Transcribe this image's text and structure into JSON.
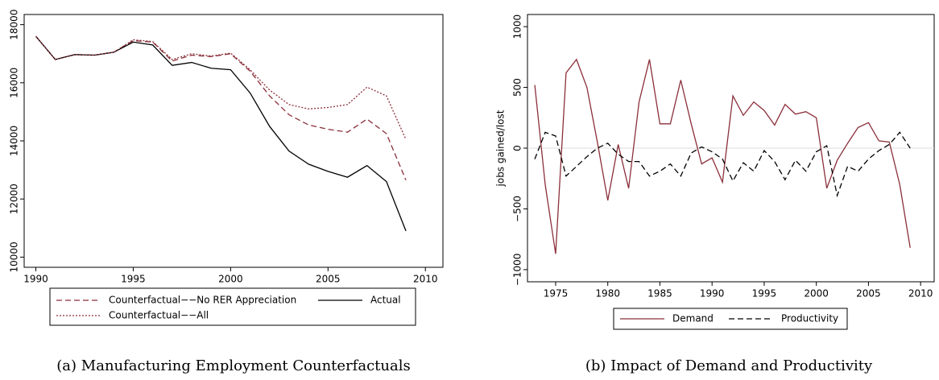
{
  "chart_data": [
    {
      "type": "line",
      "caption": "(a) Manufacturing Employment Counterfactuals",
      "x": [
        1990,
        1991,
        1992,
        1993,
        1994,
        1995,
        1996,
        1997,
        1998,
        1999,
        2000,
        2001,
        2002,
        2003,
        2004,
        2005,
        2006,
        2007,
        2008,
        2009
      ],
      "series": [
        {
          "name": "Counterfactual−−No RER Appreciation",
          "color": "#8b2f3a",
          "dash": "dashed",
          "values": [
            17600,
            16800,
            16970,
            16950,
            17050,
            17450,
            17400,
            16750,
            16950,
            16900,
            17000,
            16400,
            15550,
            14900,
            14550,
            14400,
            14300,
            14750,
            14250,
            12650
          ]
        },
        {
          "name": "Actual",
          "color": "#000000",
          "dash": "solid",
          "values": [
            17600,
            16800,
            16970,
            16950,
            17050,
            17400,
            17300,
            16600,
            16700,
            16500,
            16450,
            15650,
            14500,
            13650,
            13200,
            12950,
            12750,
            13150,
            12600,
            10900
          ]
        },
        {
          "name": "Counterfactual−−All",
          "color": "#8b2f3a",
          "dash": "dotted",
          "values": [
            17600,
            16800,
            16970,
            16950,
            17050,
            17480,
            17420,
            16800,
            17000,
            16920,
            17020,
            16450,
            15750,
            15250,
            15100,
            15150,
            15250,
            15850,
            15550,
            14050
          ]
        }
      ],
      "xlim": [
        1989.4,
        2010.9
      ],
      "xticks": [
        1990,
        1995,
        2000,
        2005,
        2010
      ],
      "ylim": [
        9650,
        18350
      ],
      "yticks": [
        10000,
        12000,
        14000,
        16000,
        18000
      ],
      "legend": "bottom"
    },
    {
      "type": "line",
      "caption": "(b) Impact of Demand and Productivity",
      "y_label": "jobs gained/lost",
      "x": [
        1973,
        1974,
        1975,
        1976,
        1977,
        1978,
        1979,
        1980,
        1981,
        1982,
        1983,
        1984,
        1985,
        1986,
        1987,
        1988,
        1989,
        1990,
        1991,
        1992,
        1993,
        1994,
        1995,
        1996,
        1997,
        1998,
        1999,
        2000,
        2001,
        2002,
        2003,
        2004,
        2005,
        2006,
        2007,
        2008,
        2009
      ],
      "series": [
        {
          "name": "Demand",
          "color": "#8b2f3a",
          "dash": "solid",
          "values": [
            520,
            -300,
            -870,
            620,
            730,
            500,
            50,
            -430,
            30,
            -330,
            380,
            730,
            200,
            200,
            560,
            200,
            -130,
            -80,
            -280,
            430,
            270,
            380,
            310,
            190,
            360,
            280,
            300,
            250,
            -330,
            -100,
            40,
            170,
            210,
            60,
            50,
            -300,
            -820
          ]
        },
        {
          "name": "Productivity",
          "color": "#000000",
          "dash": "dashed",
          "values": [
            -90,
            130,
            100,
            -230,
            -150,
            -70,
            0,
            40,
            -50,
            -110,
            -110,
            -230,
            -190,
            -130,
            -230,
            -40,
            10,
            -30,
            -90,
            -270,
            -120,
            -190,
            -20,
            -110,
            -260,
            -100,
            -190,
            -30,
            20,
            -390,
            -150,
            -190,
            -90,
            -20,
            30,
            130,
            0
          ]
        }
      ],
      "xlim": [
        1972.3,
        2011.3
      ],
      "xticks": [
        1975,
        1980,
        1985,
        1990,
        1995,
        2000,
        2005,
        2010
      ],
      "ylim": [
        -1100,
        1100
      ],
      "yticks": [
        {
          "value": -1000,
          "label": "−1000"
        },
        {
          "value": -500,
          "label": "−500"
        },
        0,
        500,
        1000
      ],
      "reference_line": 0,
      "legend": "bottom"
    }
  ]
}
